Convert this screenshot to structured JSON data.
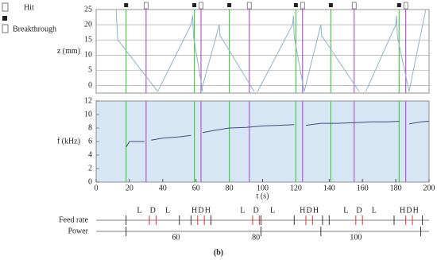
{
  "chart_data": [
    {
      "type": "line",
      "ylabel": "z (mm)",
      "xlim": [
        0,
        200
      ],
      "ylim": [
        -2.5,
        25
      ],
      "yticks": [
        0,
        5,
        10,
        15,
        20,
        25
      ],
      "grid": true,
      "series": [
        {
          "color": "#8fb3c9",
          "x": [
            12,
            13,
            37,
            null,
            37,
            57,
            58,
            58.5,
            64,
            null,
            63,
            74,
            74.5,
            75,
            95,
            null,
            97,
            118,
            118.5,
            119,
            125,
            null,
            125,
            135,
            135.5,
            136,
            158,
            null,
            162,
            180,
            180.5,
            181,
            188,
            null,
            188,
            198
          ],
          "values": [
            25,
            15,
            -2,
            null,
            -2,
            20,
            23,
            16,
            -2,
            null,
            -2,
            20,
            16,
            16,
            -2,
            null,
            -2,
            20,
            23,
            16,
            -2,
            null,
            -2,
            20,
            16,
            16,
            -2,
            null,
            -2,
            20,
            23,
            16,
            -2,
            null,
            -2,
            25
          ]
        }
      ]
    },
    {
      "type": "line",
      "ylabel": "f (kHz)",
      "xlabel": "t (s)",
      "xlim": [
        0,
        200
      ],
      "ylim": [
        0,
        12
      ],
      "yticks": [
        0,
        2,
        4,
        6,
        8,
        10,
        12
      ],
      "xticks": [
        0,
        20,
        40,
        60,
        80,
        100,
        120,
        140,
        160,
        180,
        200
      ],
      "background": "#d6e6f5",
      "series": [
        {
          "color": "#3d4f7c",
          "x": [
            18,
            20,
            25,
            29,
            null,
            33,
            40,
            50,
            57,
            null,
            64,
            70,
            80,
            90,
            100,
            110,
            119,
            null,
            126,
            135,
            145,
            155,
            165,
            175,
            182,
            null,
            188,
            195,
            200
          ],
          "values": [
            5.2,
            6,
            6,
            6,
            null,
            6.2,
            6.5,
            6.7,
            6.9,
            null,
            7.3,
            7.6,
            8,
            8.1,
            8.3,
            8.4,
            8.5,
            null,
            8.4,
            8.7,
            8.7,
            8.8,
            8.9,
            8.9,
            9,
            null,
            8.6,
            8.9,
            9
          ]
        }
      ]
    }
  ],
  "events": {
    "hit_label": "Hit",
    "breakthrough_label": "Breakthrough",
    "hit_color": "#4cc94c",
    "breakthrough_color": "#b05ad0",
    "hits": [
      18,
      59,
      80,
      120,
      141,
      182
    ],
    "breakthroughs": [
      30,
      63,
      92,
      124,
      155,
      186
    ]
  },
  "timeline": {
    "feed_label": "Feed rate",
    "power_label": "Power",
    "feed_segments": [
      {
        "label": "L",
        "t": 26
      },
      {
        "label": "D",
        "t": 34
      },
      {
        "label": "L",
        "t": 43
      },
      {
        "label": "H",
        "t": 59
      },
      {
        "label": "D",
        "t": 63
      },
      {
        "label": "H",
        "t": 67
      },
      {
        "label": "L",
        "t": 88
      },
      {
        "label": "D",
        "t": 96
      },
      {
        "label": "L",
        "t": 106
      },
      {
        "label": "H",
        "t": 124
      },
      {
        "label": "D",
        "t": 128
      },
      {
        "label": "H",
        "t": 132
      },
      {
        "label": "L",
        "t": 150
      },
      {
        "label": "D",
        "t": 158
      },
      {
        "label": "L",
        "t": 167
      },
      {
        "label": "H",
        "t": 184
      },
      {
        "label": "D",
        "t": 188
      },
      {
        "label": "H",
        "t": 192
      }
    ],
    "feed_ticks": [
      18,
      50,
      57,
      69,
      99,
      119,
      136,
      140,
      179,
      196
    ],
    "feed_red_ticks": [
      32,
      36,
      61,
      65,
      94,
      98,
      126,
      130,
      156,
      160,
      186,
      190
    ],
    "power_segments": [
      {
        "label": "60",
        "t": 48
      },
      {
        "label": "80",
        "t": 96
      },
      {
        "label": "100",
        "t": 156
      }
    ],
    "power_ticks": [
      18,
      99,
      135,
      195
    ]
  },
  "caption": "(b)"
}
